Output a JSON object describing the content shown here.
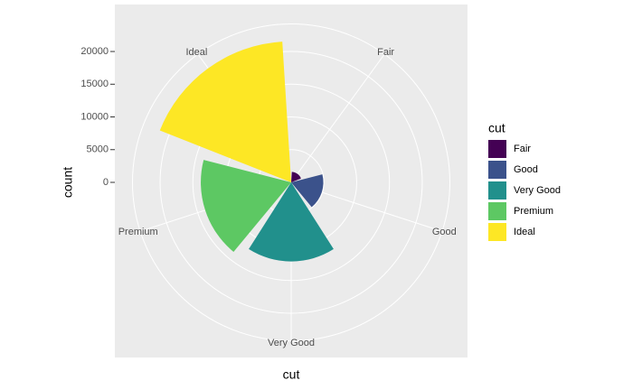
{
  "chart_data": {
    "type": "bar",
    "polar": true,
    "x_label": "cut",
    "y_label": "count",
    "legend_title": "cut",
    "categories": [
      "Fair",
      "Good",
      "Very Good",
      "Premium",
      "Ideal"
    ],
    "values": [
      1610,
      4906,
      12082,
      13791,
      21551
    ],
    "colors": [
      "#440154",
      "#3B528B",
      "#21908C",
      "#5DC863",
      "#FDE725"
    ],
    "ylim": [
      0,
      21551
    ],
    "yticks": [
      0,
      5000,
      10000,
      15000,
      20000
    ],
    "grid": true
  }
}
